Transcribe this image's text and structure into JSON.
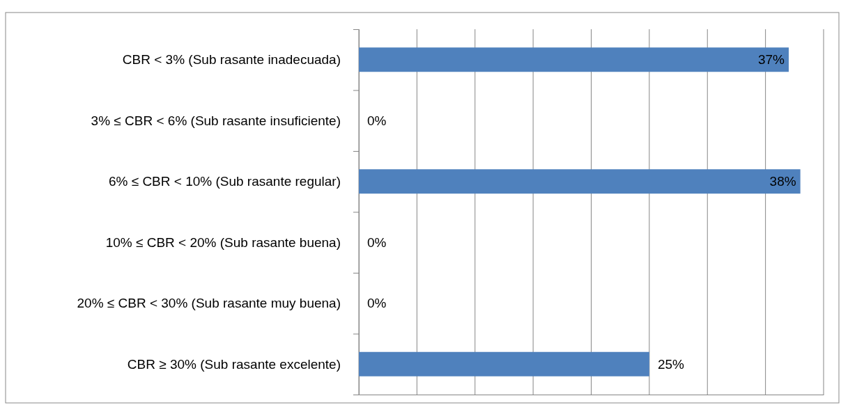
{
  "chart_data": {
    "type": "bar",
    "orientation": "horizontal",
    "categories": [
      "CBR < 3% (Sub rasante inadecuada)",
      "3% ≤ CBR < 6% (Sub rasante insuficiente)",
      "6% ≤ CBR < 10% (Sub rasante regular)",
      "10% ≤ CBR < 20% (Sub rasante buena)",
      "20% ≤ CBR < 30% (Sub rasante muy buena)",
      "CBR ≥ 30% (Sub rasante excelente)"
    ],
    "values": [
      37,
      0,
      38,
      0,
      0,
      25
    ],
    "value_labels": [
      "37%",
      "0%",
      "38%",
      "0%",
      "0%",
      "25%"
    ],
    "color": "#4f81bd",
    "xlim": [
      0,
      40
    ],
    "xticks": [
      {
        "value": 0,
        "label": null
      },
      {
        "value": 5,
        "label": null
      },
      {
        "value": 10,
        "label": null
      },
      {
        "value": 15,
        "label": null
      },
      {
        "value": 20,
        "label": null
      },
      {
        "value": 25,
        "label": null
      },
      {
        "value": 30,
        "label": null
      },
      {
        "value": 35,
        "label": null
      },
      {
        "value": 40,
        "label": null
      }
    ],
    "grid": "x",
    "tick_labels": "y"
  }
}
